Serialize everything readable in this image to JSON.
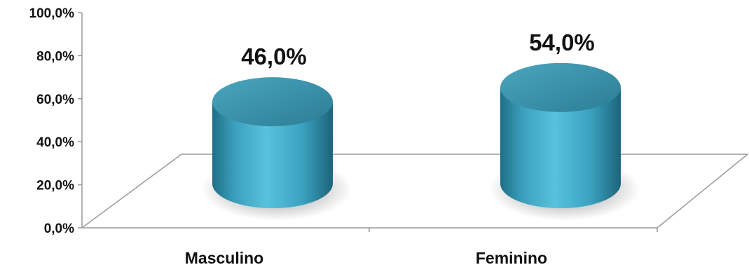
{
  "chart_data": {
    "type": "bar",
    "style": "3d-cylinder",
    "categories": [
      "Masculino",
      "Feminino"
    ],
    "values": [
      46.0,
      54.0
    ],
    "data_labels": [
      "46,0%",
      "54,0%"
    ],
    "ylim": [
      0,
      100
    ],
    "yticks": [
      0,
      20,
      40,
      60,
      80,
      100
    ],
    "ytick_labels": [
      "0,0%",
      "20,0%",
      "40,0%",
      "60,0%",
      "80,0%",
      "100,0%"
    ],
    "grid": false,
    "legend": "none",
    "bar_color": "#3fa9c7",
    "title": "",
    "xlabel": "",
    "ylabel": ""
  }
}
